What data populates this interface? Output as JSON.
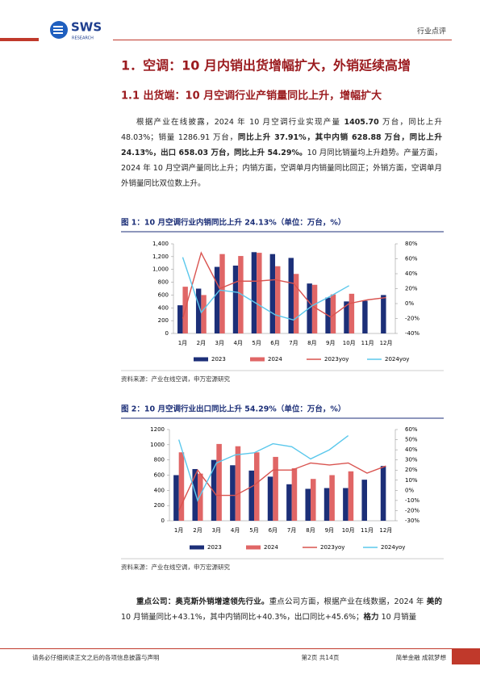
{
  "header": {
    "logo_text": "SWS",
    "logo_sub": "RESEARCH",
    "tag": "行业点评"
  },
  "heading1": "1．空调：10 月内销出货增幅扩大，外销延续高增",
  "heading2": "1.1 出货端：10 月空调行业产销量同比上升，增幅扩大",
  "paragraphs": [
    {
      "runs": [
        {
          "text": "根据产业在线披露，2024 年 10 月空调行业实现产量 ",
          "bold": false
        },
        {
          "text": "1405.70",
          "bold": true
        },
        {
          "text": " 万台，同比上升 48.03%；销量 1286.91 万台，",
          "bold": false
        },
        {
          "text": "同比上升 37.91%，其中内销 628.88 万台，同比上升 24.13%，出口 658.03 万台，同比上升 54.29%。",
          "bold": true
        },
        {
          "text": "10 月同比销量均上升趋势。产量方面，2024 年 10 月空调产量同比上升；内销方面，空调单月内销量同比回正；外销方面，空调单月外销量同比双位数上升。",
          "bold": false
        }
      ]
    },
    {
      "runs": [
        {
          "text": "重点公司：奥克斯外销增速领先行业。",
          "bold": true
        },
        {
          "text": "重点公司方面，根据产业在线数据，2024 年 ",
          "bold": false
        },
        {
          "text": "美的",
          "bold": true
        },
        {
          "text": " 10 月销量同比+43.1%，其中内销同比+40.3%，出口同比+45.6%；",
          "bold": false
        },
        {
          "text": "格力",
          "bold": true
        },
        {
          "text": " 10 月销量",
          "bold": false
        }
      ]
    }
  ],
  "figures": [
    {
      "title": "图 1：10 月空调行业内销同比上升 24.13%（单位：万台，%）",
      "source": "资料来源：产业在线空调，申万宏源研究",
      "chart": {
        "type": "combo",
        "categories": [
          "1月",
          "2月",
          "3月",
          "4月",
          "5月",
          "6月",
          "7月",
          "8月",
          "9月",
          "10月",
          "11月",
          "12月"
        ],
        "series": [
          {
            "name": "2023",
            "type": "bar",
            "color": "#1c2f78",
            "values": [
              440,
              700,
              1040,
              1060,
              1270,
              1240,
              1180,
              780,
              560,
              500,
              510,
              600
            ]
          },
          {
            "name": "2024",
            "type": "bar",
            "color": "#e06666",
            "values": [
              730,
              600,
              1240,
              1210,
              1260,
              1050,
              930,
              760,
              610,
              620,
              null,
              null
            ]
          },
          {
            "name": "2023yoy",
            "type": "line",
            "axis": "y2",
            "color": "#d9534f",
            "values": [
              -20,
              68,
              20,
              30,
              30,
              32,
              27,
              -3,
              -18,
              0,
              5,
              8
            ]
          },
          {
            "name": "2024yoy",
            "type": "line",
            "axis": "y2",
            "color": "#5bc8ec",
            "values": [
              62,
              -12,
              18,
              15,
              0,
              -15,
              -22,
              -3,
              10,
              24,
              null,
              null
            ]
          }
        ],
        "ylim": [
          0,
          1400
        ],
        "yticks": [
          0,
          200,
          400,
          600,
          800,
          {
            "value": 1000,
            "label": "1,000"
          },
          {
            "value": 1200,
            "label": "1,200"
          },
          {
            "value": 1400,
            "label": "1,400"
          }
        ],
        "y2lim": [
          -40,
          80
        ],
        "y2ticks": [
          {
            "value": -40,
            "label": "-40%"
          },
          {
            "value": -20,
            "label": "-20%"
          },
          {
            "value": 0,
            "label": "0%"
          },
          {
            "value": 20,
            "label": "20%"
          },
          {
            "value": 40,
            "label": "40%"
          },
          {
            "value": 60,
            "label": "60%"
          },
          {
            "value": 80,
            "label": "80%"
          }
        ]
      }
    },
    {
      "title": "图 2：10 月空调行业出口同比上升 54.29%（单位：万台，%）",
      "source": "资料来源：产业在线空调，申万宏源研究",
      "chart": {
        "type": "combo",
        "categories": [
          "1月",
          "2月",
          "3月",
          "4月",
          "5月",
          "6月",
          "7月",
          "8月",
          "9月",
          "10月",
          "11月",
          "12月"
        ],
        "series": [
          {
            "name": "2023",
            "type": "bar",
            "color": "#1c2f78",
            "values": [
              600,
              680,
              800,
              730,
              660,
              580,
              480,
              420,
              430,
              430,
              540,
              720
            ]
          },
          {
            "name": "2024",
            "type": "bar",
            "color": "#e06666",
            "values": [
              900,
              620,
              1010,
              980,
              900,
              840,
              690,
              550,
              600,
              650,
              null,
              null
            ]
          },
          {
            "name": "2023yoy",
            "type": "line",
            "axis": "y2",
            "color": "#d9534f",
            "values": [
              -20,
              20,
              -5,
              -5,
              5,
              20,
              20,
              27,
              25,
              27,
              17,
              24
            ]
          },
          {
            "name": "2024yoy",
            "type": "line",
            "axis": "y2",
            "color": "#5bc8ec",
            "values": [
              50,
              -10,
              27,
              35,
              37,
              46,
              43,
              31,
              40,
              54,
              null,
              null
            ]
          }
        ],
        "ylim": [
          0,
          1200
        ],
        "yticks": [
          0,
          200,
          400,
          600,
          800,
          1000,
          1200
        ],
        "y2lim": [
          -30,
          60
        ],
        "y2ticks": [
          {
            "value": -30,
            "label": "-30%"
          },
          {
            "value": -20,
            "label": "-20%"
          },
          {
            "value": -10,
            "label": "-10%"
          },
          {
            "value": 0,
            "label": "0%"
          },
          {
            "value": 10,
            "label": "10%"
          },
          {
            "value": 20,
            "label": "20%"
          },
          {
            "value": 30,
            "label": "30%"
          },
          {
            "value": 40,
            "label": "40%"
          },
          {
            "value": 50,
            "label": "50%"
          },
          {
            "value": 60,
            "label": "60%"
          }
        ]
      }
    }
  ],
  "footer": {
    "disclaimer": "请务必仔细阅读正文之后的各项信息披露与声明",
    "page": "第2页 共14页",
    "slogan": "简单金融 成就梦想"
  }
}
